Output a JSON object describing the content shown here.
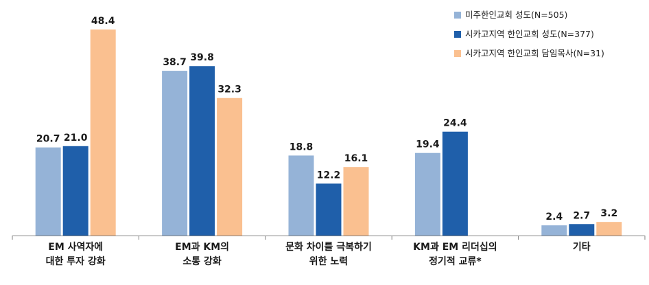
{
  "chart_data": {
    "type": "bar",
    "categories": [
      [
        "EM 사역자에",
        "대한 투자 강화"
      ],
      [
        "EM과 KM의",
        "소통 강화"
      ],
      [
        "문화 차이를 극복하기",
        "위한 노력"
      ],
      [
        "KM과 EM 리더십의",
        "정기적 교류*"
      ],
      [
        "기타"
      ]
    ],
    "series": [
      {
        "name": "미주한인교회 성도(N=505)",
        "color": "#95B3D7",
        "values": [
          20.7,
          38.7,
          18.8,
          19.4,
          2.4
        ],
        "labels": [
          "20.7",
          "38.7",
          "18.8",
          "19.4",
          "2.4"
        ]
      },
      {
        "name": "시카고지역 한인교회 성도(N=377)",
        "color": "#1F5FAA",
        "values": [
          21.0,
          39.8,
          12.2,
          24.4,
          2.7
        ],
        "labels": [
          "21.0",
          "39.8",
          "12.2",
          "24.4",
          "2.7"
        ]
      },
      {
        "name": "시카고지역 한인교회 담임목사(N=31)",
        "color": "#FAC090",
        "values": [
          48.4,
          32.3,
          16.1,
          null,
          3.2
        ],
        "labels": [
          "48.4",
          "32.3",
          "16.1",
          null,
          "3.2"
        ]
      }
    ],
    "ylim": [
      0,
      50
    ],
    "grid": false,
    "legend_position": "top-right"
  }
}
